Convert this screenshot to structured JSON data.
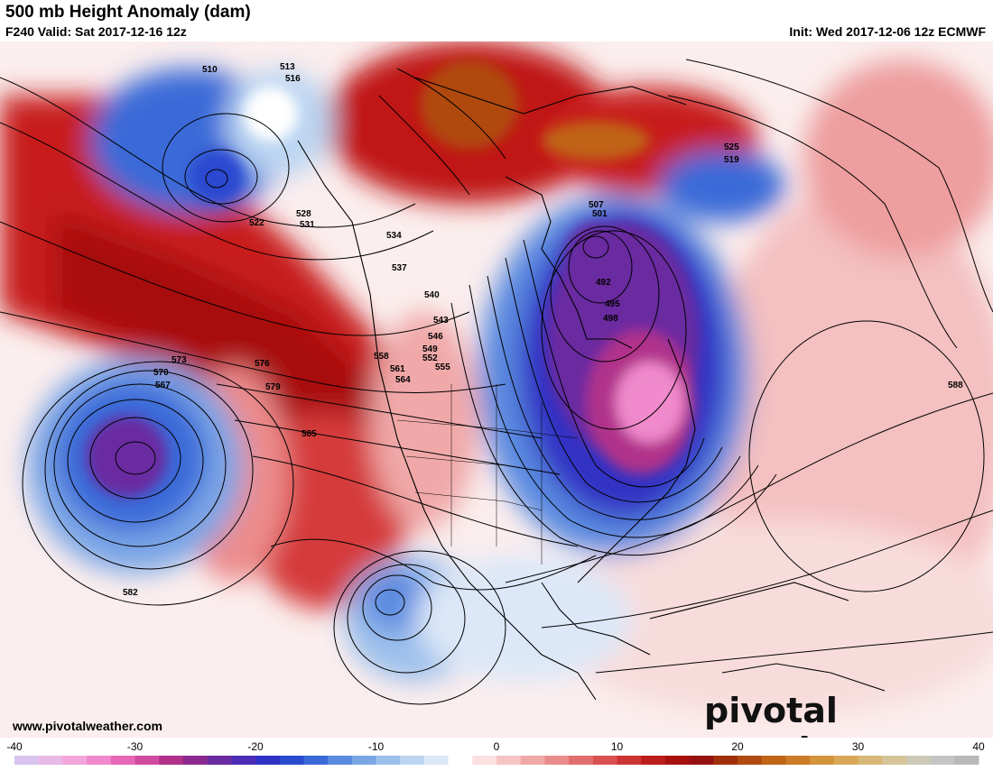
{
  "header": {
    "title": "500 mb Height Anomaly (dam)",
    "subtitle": "F240 Valid: Sat 2017-12-16 12z",
    "init": "Init: Wed 2017-12-06 12z ECMWF"
  },
  "footer": {
    "website": "www.pivotalweather.com",
    "brand": "pivotal weather"
  },
  "colorbar": {
    "ticks": [
      "-40",
      "-30",
      "-20",
      "-10",
      "0",
      "10",
      "20",
      "30",
      "40"
    ],
    "colors": [
      "#d9c4ef",
      "#e8b8e6",
      "#f2a6dc",
      "#f08acc",
      "#e868b8",
      "#d04aa0",
      "#b0308a",
      "#8a2a8e",
      "#6a2aa0",
      "#4c2cb4",
      "#3030c4",
      "#2a4ad0",
      "#3a6ad8",
      "#5a8ae0",
      "#7aa6e6",
      "#9cc0ec",
      "#bcd6f2",
      "#dce8f8",
      "#ffffff",
      "#fbe0e0",
      "#f6c4c4",
      "#f0a8a8",
      "#ea8c8c",
      "#e26e6e",
      "#d85050",
      "#cc3434",
      "#bc1c1c",
      "#a81010",
      "#961010",
      "#a0300c",
      "#b04a10",
      "#c06418",
      "#cc7c28",
      "#d4943c",
      "#d8a858",
      "#d8b878",
      "#d4c498",
      "#cccab6",
      "#c4c4c4",
      "#b8b8b8"
    ]
  },
  "contour_labels": [
    "510",
    "513",
    "516",
    "519",
    "522",
    "525",
    "528",
    "531",
    "534",
    "537",
    "540",
    "543",
    "546",
    "549",
    "552",
    "555",
    "558",
    "561",
    "564",
    "567",
    "570",
    "573",
    "576",
    "579",
    "582",
    "585",
    "588",
    "492",
    "495",
    "498",
    "501",
    "507"
  ]
}
